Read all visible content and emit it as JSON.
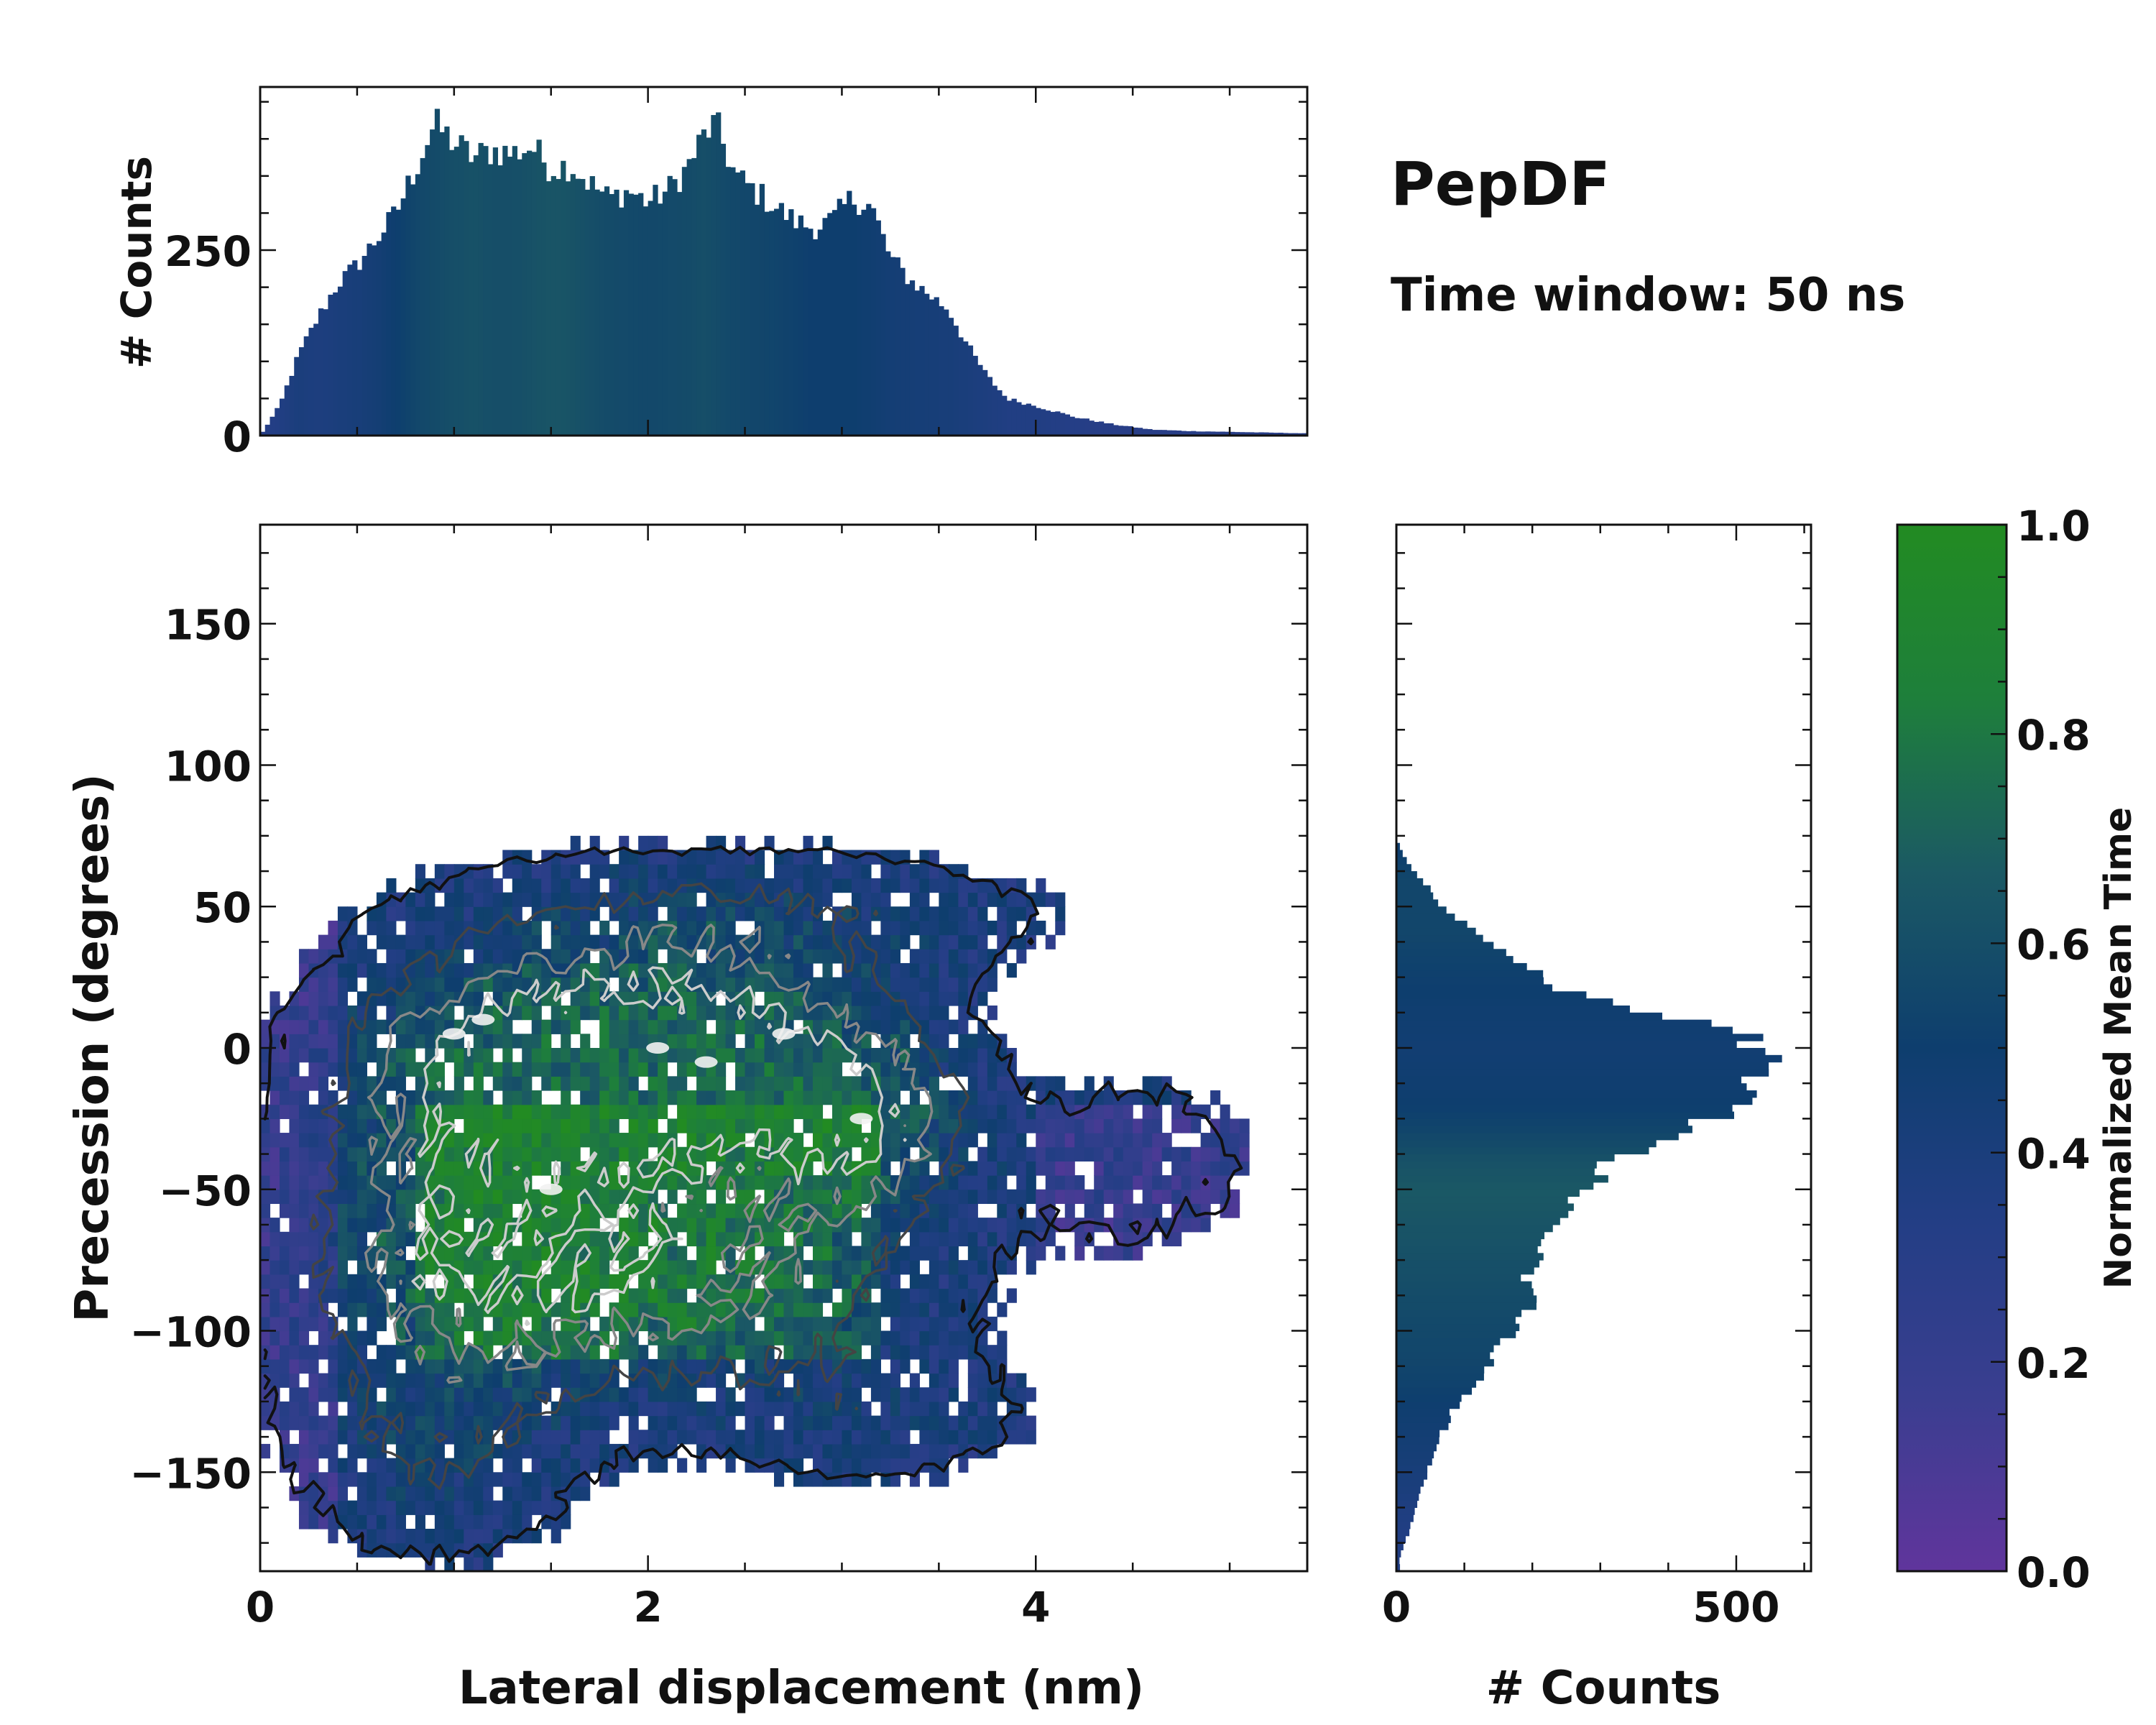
{
  "chart_data": [
    {
      "type": "histogram",
      "panel": "top-marginal",
      "ylabel": "# Counts",
      "xlim": [
        0,
        5.4
      ],
      "ylim": [
        0,
        470
      ],
      "yticks": [
        0,
        250
      ],
      "bin_width": 0.025,
      "color_by": "Normalized Mean Time",
      "envelope": {
        "x": [
          0.0,
          0.1,
          0.2,
          0.3,
          0.4,
          0.5,
          0.6,
          0.7,
          0.8,
          0.9,
          1.0,
          1.1,
          1.2,
          1.3,
          1.4,
          1.5,
          1.6,
          1.7,
          1.8,
          1.9,
          2.0,
          2.1,
          2.2,
          2.3,
          2.35,
          2.45,
          2.55,
          2.65,
          2.75,
          2.85,
          2.95,
          3.05,
          3.15,
          3.25,
          3.35,
          3.45,
          3.55,
          3.65,
          3.75,
          3.85,
          4.0,
          4.2,
          4.4,
          4.6,
          4.8,
          5.0,
          5.2,
          5.4
        ],
        "counts": [
          0,
          40,
          110,
          160,
          205,
          230,
          265,
          300,
          360,
          420,
          395,
          375,
          385,
          380,
          390,
          360,
          365,
          340,
          320,
          330,
          315,
          330,
          360,
          410,
          420,
          350,
          330,
          310,
          290,
          280,
          290,
          320,
          310,
          240,
          210,
          190,
          170,
          120,
          80,
          50,
          40,
          25,
          15,
          8,
          6,
          5,
          4,
          3
        ]
      },
      "envelope_color": [
        0.3,
        0.35,
        0.4,
        0.38,
        0.4,
        0.42,
        0.45,
        0.5,
        0.55,
        0.58,
        0.6,
        0.62,
        0.6,
        0.6,
        0.62,
        0.64,
        0.63,
        0.6,
        0.58,
        0.57,
        0.56,
        0.57,
        0.58,
        0.6,
        0.58,
        0.56,
        0.55,
        0.54,
        0.52,
        0.5,
        0.5,
        0.5,
        0.48,
        0.45,
        0.44,
        0.43,
        0.42,
        0.4,
        0.38,
        0.35,
        0.35,
        0.32,
        0.3,
        0.3,
        0.3,
        0.3,
        0.3,
        0.3
      ]
    },
    {
      "type": "heatmap",
      "panel": "main",
      "xlabel": "Lateral displacement (nm)",
      "ylabel": "Precession (degrees)",
      "xlim": [
        0,
        5.4
      ],
      "ylim": [
        -185,
        185
      ],
      "xticks": [
        0,
        2,
        4
      ],
      "yticks": [
        -150,
        -100,
        -50,
        0,
        50,
        100,
        150
      ],
      "ytick_labels": [
        "−150",
        "−100",
        "−50",
        "0",
        "50",
        "100",
        "150"
      ],
      "cell_size": {
        "x": 0.05,
        "y": 5
      },
      "density_components": [
        {
          "x": 1.3,
          "y": -10,
          "sx": 0.55,
          "sy": 28,
          "w": 1.0
        },
        {
          "x": 2.3,
          "y": -5,
          "sx": 0.55,
          "sy": 25,
          "w": 1.0
        },
        {
          "x": 3.1,
          "y": -25,
          "sx": 0.35,
          "sy": 22,
          "w": 0.7
        },
        {
          "x": 1.0,
          "y": -75,
          "sx": 0.55,
          "sy": 30,
          "w": 0.6
        },
        {
          "x": 2.2,
          "y": -80,
          "sx": 0.75,
          "sy": 28,
          "w": 0.6
        },
        {
          "x": 0.9,
          "y": -140,
          "sx": 0.45,
          "sy": 25,
          "w": 0.28
        },
        {
          "x": 4.5,
          "y": -40,
          "sx": 0.45,
          "sy": 22,
          "w": 0.15
        },
        {
          "x": 3.2,
          "y": -130,
          "sx": 0.5,
          "sy": 15,
          "w": 0.18
        },
        {
          "x": 2.5,
          "y": 45,
          "sx": 0.9,
          "sy": 15,
          "w": 0.3
        }
      ],
      "region_bounds": {
        "x": [
          0,
          5.4
        ],
        "y": [
          -185,
          75
        ]
      },
      "contour_levels": [
        0.08,
        0.3,
        0.55,
        0.8
      ],
      "contour_colors": [
        "#111111",
        "#444444",
        "#888888",
        "#cccccc"
      ],
      "hot_spots": [
        {
          "x": 1.0,
          "y": 5
        },
        {
          "x": 1.15,
          "y": 10
        },
        {
          "x": 2.05,
          "y": 0
        },
        {
          "x": 2.3,
          "y": -5
        },
        {
          "x": 2.7,
          "y": 5
        },
        {
          "x": 3.1,
          "y": -25
        },
        {
          "x": 1.5,
          "y": -50
        }
      ]
    },
    {
      "type": "histogram",
      "panel": "right-marginal",
      "orientation": "horizontal",
      "xlabel": "# Counts",
      "xlim": [
        0,
        610
      ],
      "ylim": [
        -185,
        185
      ],
      "xticks": [
        0,
        500
      ],
      "bin_width": 2.5,
      "envelope": {
        "y": [
          -180,
          -170,
          -160,
          -150,
          -140,
          -130,
          -120,
          -110,
          -100,
          -90,
          -80,
          -70,
          -60,
          -50,
          -40,
          -30,
          -20,
          -10,
          0,
          10,
          20,
          30,
          40,
          50,
          60,
          70
        ],
        "counts": [
          5,
          20,
          30,
          45,
          60,
          80,
          110,
          140,
          170,
          200,
          190,
          220,
          250,
          280,
          320,
          420,
          510,
          540,
          550,
          430,
          240,
          180,
          120,
          70,
          35,
          5
        ]
      },
      "envelope_color": [
        0.35,
        0.35,
        0.38,
        0.42,
        0.45,
        0.48,
        0.52,
        0.55,
        0.56,
        0.58,
        0.6,
        0.62,
        0.64,
        0.66,
        0.62,
        0.55,
        0.5,
        0.48,
        0.47,
        0.48,
        0.5,
        0.52,
        0.55,
        0.55,
        0.55,
        0.5
      ]
    },
    {
      "type": "colorbar",
      "label": "Normalized Mean Time",
      "range": [
        0.0,
        1.0
      ],
      "ticks": [
        "0.0",
        "0.2",
        "0.4",
        "0.6",
        "0.8",
        "1.0"
      ],
      "tick_values": [
        0.0,
        0.2,
        0.4,
        0.6,
        0.8,
        1.0
      ],
      "colormap": [
        "#60359c",
        "#3a3e90",
        "#233e85",
        "#0e3e6e",
        "#1b5964",
        "#1e7f3b",
        "#228b22"
      ]
    }
  ],
  "annotations": {
    "title": "PepDF",
    "subtitle": "Time window: 50 ns"
  }
}
